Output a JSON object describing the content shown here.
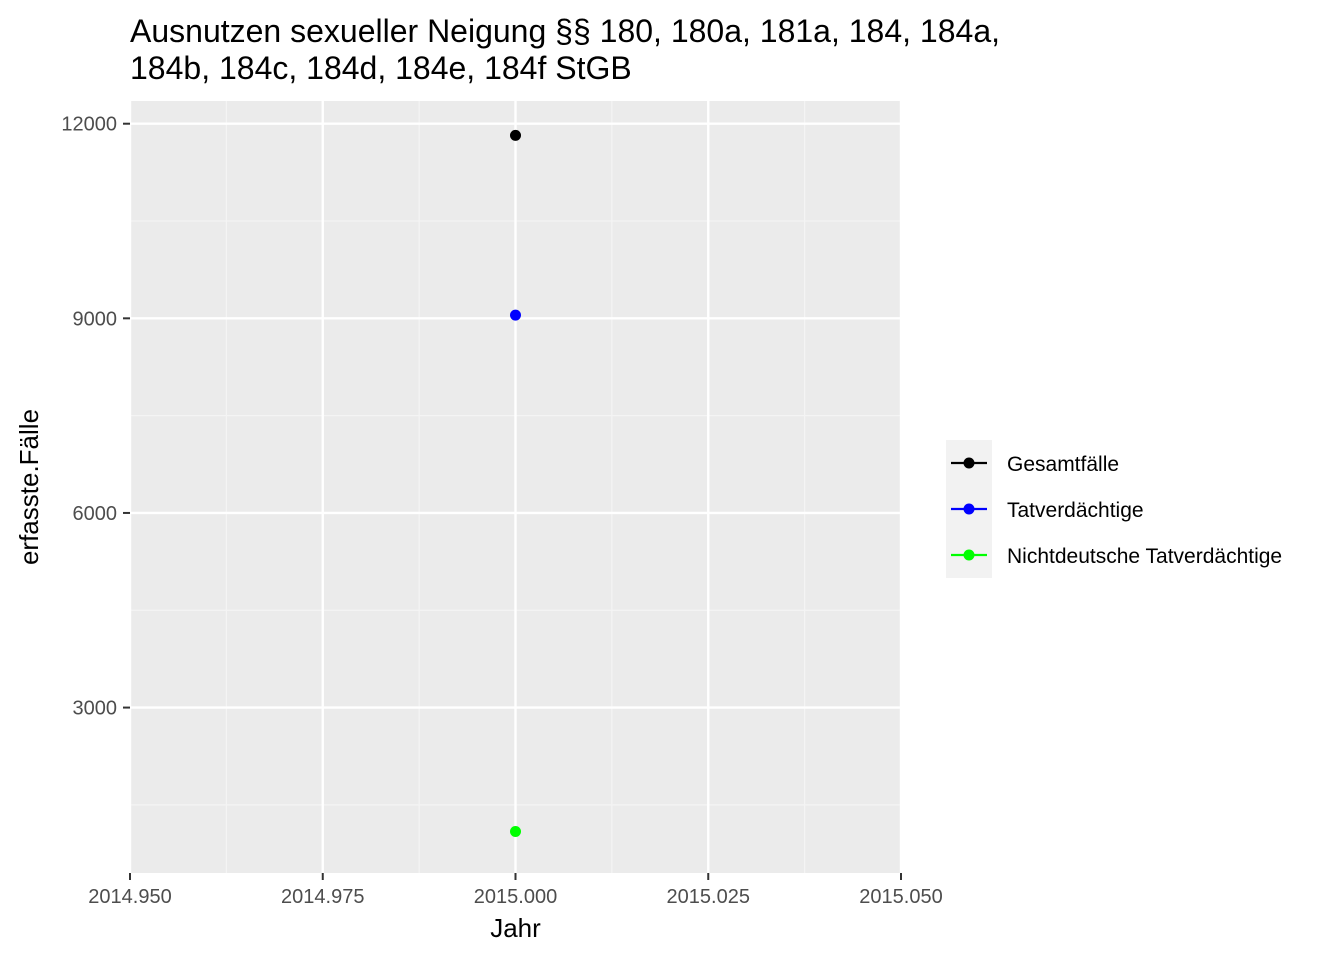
{
  "chart_data": {
    "type": "scatter",
    "title": "Ausnutzen sexueller Neigung §§ 180, 180a, 181a, 184, 184a, 184b, 184c, 184d, 184e, 184f StGB",
    "title_lines": [
      "Ausnutzen sexueller Neigung §§ 180, 180a, 181a, 184, 184a,",
      "184b, 184c, 184d, 184e, 184f StGB"
    ],
    "xlabel": "Jahr",
    "ylabel": "erfasste.Fälle",
    "xlim": [
      2014.95,
      2015.05
    ],
    "ylim": [
      450,
      12350
    ],
    "x_ticks": [
      {
        "value": 2014.95,
        "label": "2014.950"
      },
      {
        "value": 2014.975,
        "label": "2014.975"
      },
      {
        "value": 2015.0,
        "label": "2015.000"
      },
      {
        "value": 2015.025,
        "label": "2015.025"
      },
      {
        "value": 2015.05,
        "label": "2015.050"
      }
    ],
    "y_ticks": [
      {
        "value": 3000,
        "label": "3000"
      },
      {
        "value": 6000,
        "label": "6000"
      },
      {
        "value": 9000,
        "label": "9000"
      },
      {
        "value": 12000,
        "label": "12000"
      }
    ],
    "x_minor": [
      2014.9625,
      2014.9875,
      2015.0125,
      2015.0375
    ],
    "y_minor": [
      1500,
      4500,
      7500,
      10500
    ],
    "grid": true,
    "legend_position": "right",
    "series": [
      {
        "name": "Gesamtfälle",
        "color": "#000000",
        "points": [
          {
            "x": 2015.0,
            "y": 11820
          }
        ]
      },
      {
        "name": "Tatverdächtige",
        "color": "#0000ff",
        "points": [
          {
            "x": 2015.0,
            "y": 9050
          }
        ]
      },
      {
        "name": "Nichtdeutsche Tatverdächtige",
        "color": "#00ff00",
        "points": [
          {
            "x": 2015.0,
            "y": 1090
          }
        ]
      }
    ]
  },
  "colors": {
    "panel_background": "#ebebeb",
    "grid_major": "#ffffff",
    "grid_minor": "#f4f4f4",
    "tick_text": "#4d4d4d",
    "legend_key_background": "#f2f2f2"
  }
}
